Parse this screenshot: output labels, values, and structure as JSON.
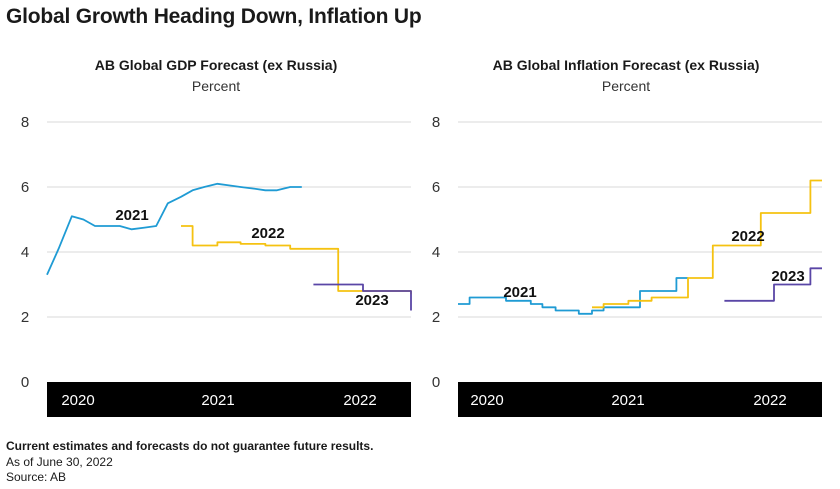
{
  "main_title": "Global Growth Heading Down, Inflation Up",
  "footnotes": {
    "disclaimer": "Current estimates and forecasts do not guarantee future results.",
    "as_of": "As of June 30, 2022",
    "source": "Source: AB"
  },
  "colors": {
    "2021": "#1f9bd4",
    "2022": "#f5c211",
    "2023": "#5a46a6",
    "grid": "#d9d9d9",
    "band": "#000000"
  },
  "chart_data": [
    {
      "type": "line",
      "title": "AB Global GDP Forecast (ex Russia)",
      "ylabel": "Percent",
      "ylim": [
        0,
        8
      ],
      "yticks": [
        0,
        2,
        4,
        6,
        8
      ],
      "xticks": [
        "2020",
        "2021",
        "2022"
      ],
      "xlim": [
        2020.0,
        2022.5
      ],
      "grid": true,
      "series": [
        {
          "name": "2021",
          "step": false,
          "x": [
            2020.0,
            2020.08,
            2020.17,
            2020.25,
            2020.33,
            2020.42,
            2020.5,
            2020.58,
            2020.67,
            2020.75,
            2020.83,
            2020.92,
            2021.0,
            2021.08,
            2021.17,
            2021.25,
            2021.33,
            2021.42,
            2021.5,
            2021.58,
            2021.67,
            2021.75
          ],
          "y": [
            3.3,
            4.1,
            5.1,
            5.0,
            4.8,
            4.8,
            4.8,
            4.7,
            4.75,
            4.8,
            5.5,
            5.7,
            5.9,
            6.0,
            6.1,
            6.05,
            6.0,
            5.95,
            5.9,
            5.9,
            6.0,
            6.0
          ]
        },
        {
          "name": "2022",
          "step": true,
          "x": [
            2020.92,
            2021.0,
            2021.17,
            2021.33,
            2021.5,
            2021.67,
            2021.83,
            2022.0,
            2022.17,
            2022.33,
            2022.5
          ],
          "y": [
            4.8,
            4.2,
            4.3,
            4.25,
            4.2,
            4.1,
            4.1,
            2.8,
            2.8,
            2.8,
            2.7
          ]
        },
        {
          "name": "2023",
          "step": true,
          "x": [
            2021.83,
            2022.0,
            2022.17,
            2022.33,
            2022.42,
            2022.5
          ],
          "y": [
            3.0,
            3.0,
            2.8,
            2.8,
            2.8,
            2.2
          ]
        }
      ],
      "annotations": [
        "2021",
        "2022",
        "2023"
      ]
    },
    {
      "type": "line",
      "title": "AB Global Inflation Forecast (ex Russia)",
      "ylabel": "Percent",
      "ylim": [
        0,
        8
      ],
      "yticks": [
        0,
        2,
        4,
        6,
        8
      ],
      "xticks": [
        "2020",
        "2021",
        "2022"
      ],
      "xlim": [
        2020.0,
        2022.5
      ],
      "grid": true,
      "series": [
        {
          "name": "2021",
          "step": true,
          "x": [
            2020.0,
            2020.08,
            2020.17,
            2020.25,
            2020.33,
            2020.42,
            2020.5,
            2020.58,
            2020.67,
            2020.75,
            2020.83,
            2020.92,
            2021.0,
            2021.08,
            2021.17,
            2021.25,
            2021.33,
            2021.42,
            2021.5,
            2021.58
          ],
          "y": [
            2.4,
            2.6,
            2.6,
            2.6,
            2.5,
            2.5,
            2.4,
            2.3,
            2.2,
            2.2,
            2.1,
            2.2,
            2.3,
            2.3,
            2.3,
            2.8,
            2.8,
            2.8,
            3.2,
            3.2
          ]
        },
        {
          "name": "2022",
          "step": true,
          "x": [
            2020.92,
            2021.0,
            2021.17,
            2021.33,
            2021.5,
            2021.58,
            2021.67,
            2021.75,
            2021.92,
            2022.08,
            2022.25,
            2022.42,
            2022.5
          ],
          "y": [
            2.3,
            2.4,
            2.5,
            2.6,
            2.6,
            3.2,
            3.2,
            4.2,
            4.2,
            5.2,
            5.2,
            6.2,
            6.2
          ]
        },
        {
          "name": "2023",
          "step": true,
          "x": [
            2021.83,
            2021.92,
            2022.08,
            2022.17,
            2022.33,
            2022.42,
            2022.5
          ],
          "y": [
            2.5,
            2.5,
            2.5,
            3.0,
            3.0,
            3.5,
            3.5
          ]
        }
      ],
      "annotations": [
        "2021",
        "2022",
        "2023"
      ]
    }
  ]
}
